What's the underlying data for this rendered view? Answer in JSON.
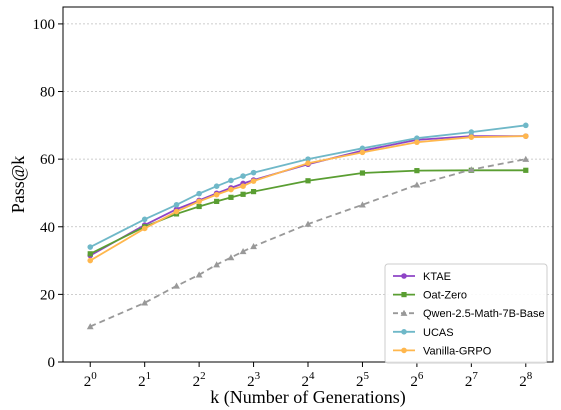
{
  "chart_data": {
    "type": "line",
    "xlabel": "k (Number of Generations)",
    "ylabel": "Pass@k",
    "x_scale": "log2",
    "x_ticks": [
      1,
      2,
      4,
      8,
      16,
      32,
      64,
      128,
      256
    ],
    "x_tick_labels": [
      {
        "base": "2",
        "exp": "0"
      },
      {
        "base": "2",
        "exp": "1"
      },
      {
        "base": "2",
        "exp": "2"
      },
      {
        "base": "2",
        "exp": "3"
      },
      {
        "base": "2",
        "exp": "4"
      },
      {
        "base": "2",
        "exp": "5"
      },
      {
        "base": "2",
        "exp": "6"
      },
      {
        "base": "2",
        "exp": "7"
      },
      {
        "base": "2",
        "exp": "8"
      }
    ],
    "xlim": [
      0.707,
      362
    ],
    "ylim": [
      0,
      105
    ],
    "y_ticks": [
      0,
      20,
      40,
      60,
      80,
      100
    ],
    "y_tick_labels": [
      "0",
      "20",
      "40",
      "60",
      "80",
      "100"
    ],
    "grid": "horizontal",
    "legend_position": "bottom-right",
    "series": [
      {
        "name": "KTAE",
        "color": "#8e44c6",
        "marker": "circle",
        "dash": "solid",
        "x": [
          1,
          2,
          3,
          4,
          5,
          6,
          7,
          8,
          16,
          32,
          64,
          128,
          256
        ],
        "y": [
          31.5,
          40.5,
          45.2,
          47.8,
          49.9,
          51.5,
          52.8,
          53.8,
          58.5,
          62.5,
          65.7,
          66.8,
          66.8
        ]
      },
      {
        "name": "Oat-Zero",
        "color": "#5a9e32",
        "marker": "square",
        "dash": "solid",
        "x": [
          1,
          2,
          3,
          4,
          5,
          6,
          7,
          8,
          16,
          32,
          64,
          128,
          256
        ],
        "y": [
          32.0,
          40.0,
          43.8,
          46.0,
          47.5,
          48.7,
          49.6,
          50.4,
          53.6,
          55.9,
          56.6,
          56.7,
          56.7
        ]
      },
      {
        "name": "Qwen-2.5-Math-7B-Base",
        "color": "#999999",
        "marker": "triangle",
        "dash": "dashed",
        "x": [
          1,
          2,
          3,
          4,
          5,
          6,
          7,
          8,
          16,
          32,
          64,
          128,
          256
        ],
        "y": [
          10.5,
          17.5,
          22.5,
          25.8,
          28.8,
          30.9,
          32.7,
          34.2,
          40.8,
          46.5,
          52.4,
          56.9,
          60.0
        ]
      },
      {
        "name": "UCAS",
        "color": "#6fb8c8",
        "marker": "circle",
        "dash": "solid",
        "x": [
          1,
          2,
          3,
          4,
          5,
          6,
          7,
          8,
          16,
          32,
          64,
          128,
          256
        ],
        "y": [
          34.0,
          42.2,
          46.5,
          49.8,
          52.0,
          53.7,
          55.0,
          56.0,
          60.0,
          63.2,
          66.2,
          68.0,
          70.0
        ]
      },
      {
        "name": "Vanilla-GRPO",
        "color": "#ffb74d",
        "marker": "circle",
        "dash": "solid",
        "x": [
          1,
          2,
          3,
          4,
          5,
          6,
          7,
          8,
          16,
          32,
          64,
          128,
          256
        ],
        "y": [
          30.0,
          39.5,
          44.5,
          47.5,
          49.5,
          51.0,
          52.0,
          53.5,
          58.8,
          62.0,
          65.0,
          66.5,
          66.8
        ]
      }
    ]
  }
}
